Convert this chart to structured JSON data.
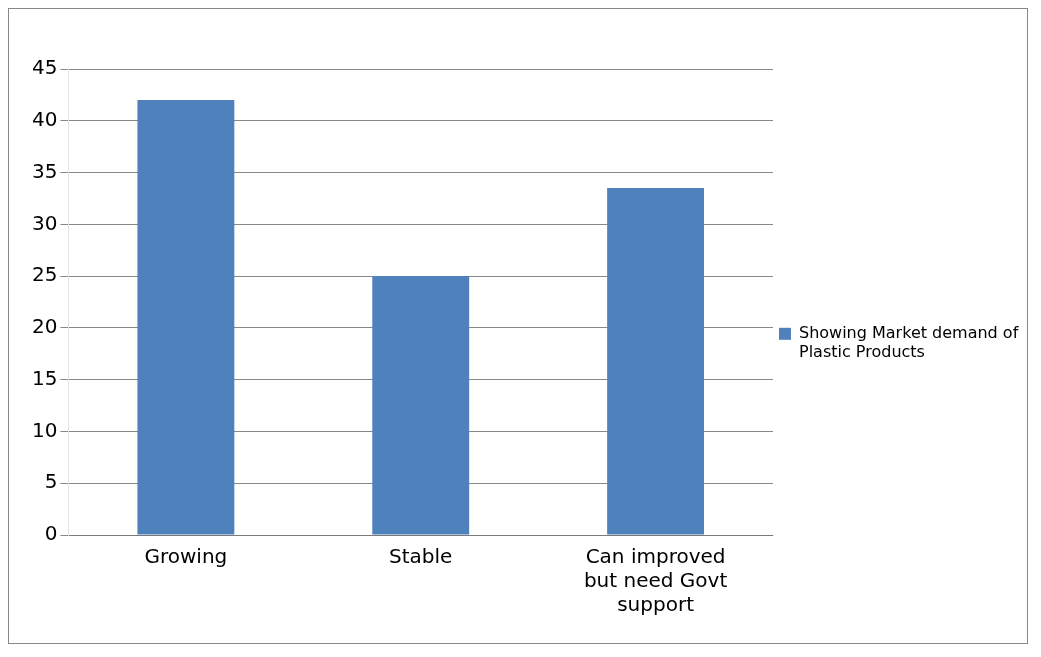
{
  "chart_data": {
    "type": "bar",
    "categories": [
      "Growing",
      "Stable",
      "Can improved but need Govt support"
    ],
    "series": [
      {
        "name": "Showing Market demand of Plastic Products",
        "color": "#4f81bd",
        "values": [
          42,
          25,
          33.5
        ]
      }
    ],
    "ylim": [
      0,
      45
    ],
    "yticks": [
      0,
      5,
      10,
      15,
      20,
      25,
      30,
      35,
      40,
      45
    ],
    "grid": "y",
    "legend": "right"
  }
}
